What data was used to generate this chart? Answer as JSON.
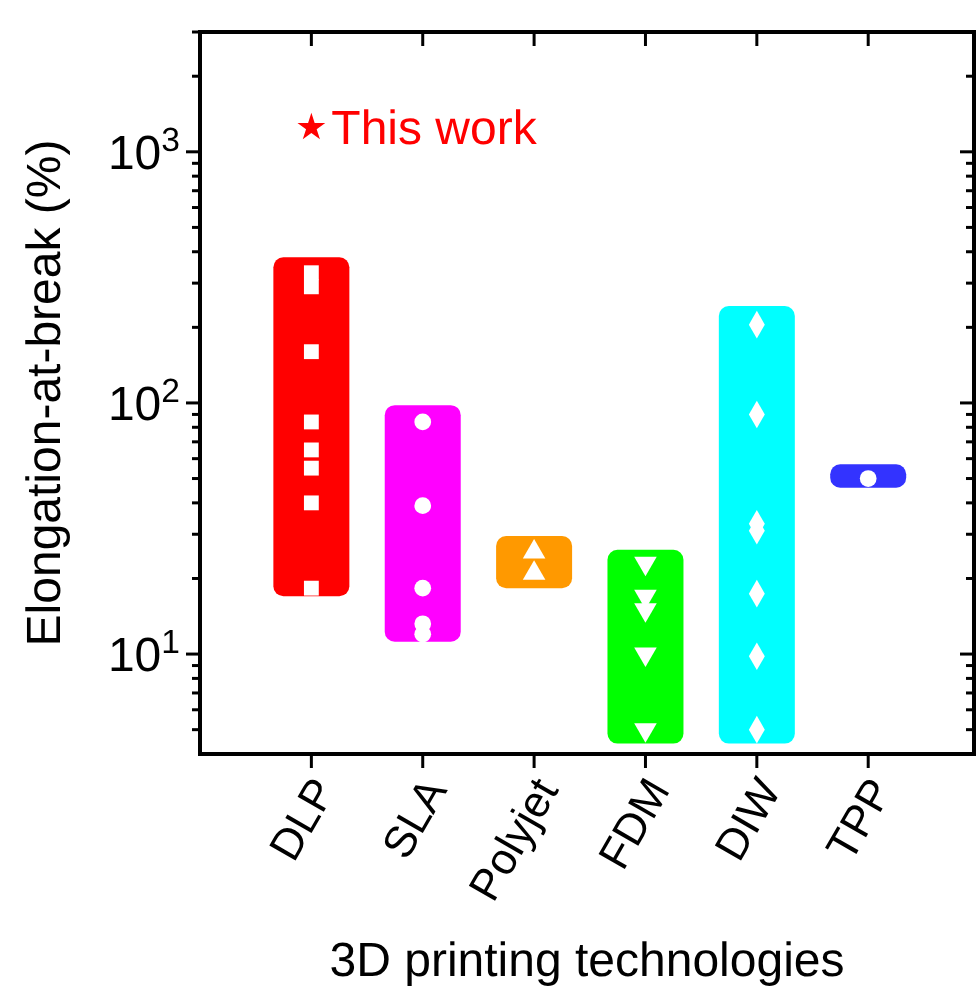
{
  "chart_data": {
    "type": "bar",
    "xlabel": "3D printing technologies",
    "ylabel": "Elongation-at-break (%)",
    "categories": [
      "DLP",
      "SLA",
      "Polyjet",
      "FDM",
      "DIW",
      "TPP"
    ],
    "log": "y",
    "ylim": [
      4,
      3000
    ],
    "yticks": [
      {
        "value": 5,
        "label": null
      },
      {
        "value": 6,
        "label": null
      },
      {
        "value": 7,
        "label": null
      },
      {
        "value": 8,
        "label": null
      },
      {
        "value": 9,
        "label": null
      },
      {
        "value": 10,
        "label": "10$^{1}$"
      },
      {
        "value": 20,
        "label": null
      },
      {
        "value": 30,
        "label": null
      },
      {
        "value": 40,
        "label": null
      },
      {
        "value": 50,
        "label": null
      },
      {
        "value": 60,
        "label": null
      },
      {
        "value": 70,
        "label": null
      },
      {
        "value": 80,
        "label": null
      },
      {
        "value": 90,
        "label": null
      },
      {
        "value": 100,
        "label": "10$^{2}$"
      },
      {
        "value": 200,
        "label": null
      },
      {
        "value": 300,
        "label": null
      },
      {
        "value": 400,
        "label": null
      },
      {
        "value": 500,
        "label": null
      },
      {
        "value": 600,
        "label": null
      },
      {
        "value": 700,
        "label": null
      },
      {
        "value": 800,
        "label": null
      },
      {
        "value": 900,
        "label": null
      },
      {
        "value": 1000,
        "label": "10$^{3}$"
      },
      {
        "value": 2000,
        "label": null
      },
      {
        "value": 3000,
        "label": null
      }
    ],
    "grid": false,
    "series": [
      {
        "base": [
          17,
          11.2,
          18.3,
          4.4,
          4.4,
          46
        ],
        "values": [
          363,
          86.8,
          11.2,
          21.6,
          238.6,
          11
        ],
        "colors": [
          "#ff0000",
          "#ff00ff",
          "#ff9900",
          "#00ff00",
          "#00ffff",
          "#3333ff"
        ]
      },
      {
        "type": "scatter",
        "marker": "square",
        "color": "#ffffff",
        "x": [
          "DLP",
          "DLP",
          "DLP",
          "DLP",
          "DLP",
          "DLP",
          "DLP",
          "DLP"
        ],
        "values": [
          330,
          290,
          160,
          84,
          65,
          55,
          40,
          18.3
        ]
      },
      {
        "type": "scatter",
        "marker": "circle",
        "color": "#ffffff",
        "x": [
          "SLA",
          "SLA",
          "SLA",
          "SLA",
          "SLA"
        ],
        "values": [
          84,
          39,
          18.3,
          13.2,
          12
        ]
      },
      {
        "type": "scatter",
        "marker": "triangle",
        "color": "#ffffff",
        "x": [
          "Polyjet",
          "Polyjet"
        ],
        "values": [
          25.5,
          21
        ]
      },
      {
        "type": "scatter",
        "marker": "triangle_down",
        "color": "#ffffff",
        "x": [
          "FDM",
          "FDM",
          "FDM",
          "FDM",
          "FDM"
        ],
        "values": [
          23,
          17,
          15,
          10,
          5
        ]
      },
      {
        "type": "scatter",
        "marker": "diamond",
        "color": "#ffffff",
        "x": [
          "DIW",
          "DIW",
          "DIW",
          "DIW",
          "DIW",
          "DIW",
          "DIW"
        ],
        "values": [
          205,
          90,
          33,
          31,
          17.4,
          9.8,
          5
        ]
      },
      {
        "type": "scatter",
        "marker": "circle",
        "color": "#ffffff",
        "x": [
          "TPP"
        ],
        "values": [
          50
        ]
      },
      {
        "type": "scatter",
        "marker": "star",
        "color": "#ff0000",
        "name": "This work",
        "x": [
          "DLP"
        ],
        "values": [
          1250
        ]
      }
    ]
  }
}
